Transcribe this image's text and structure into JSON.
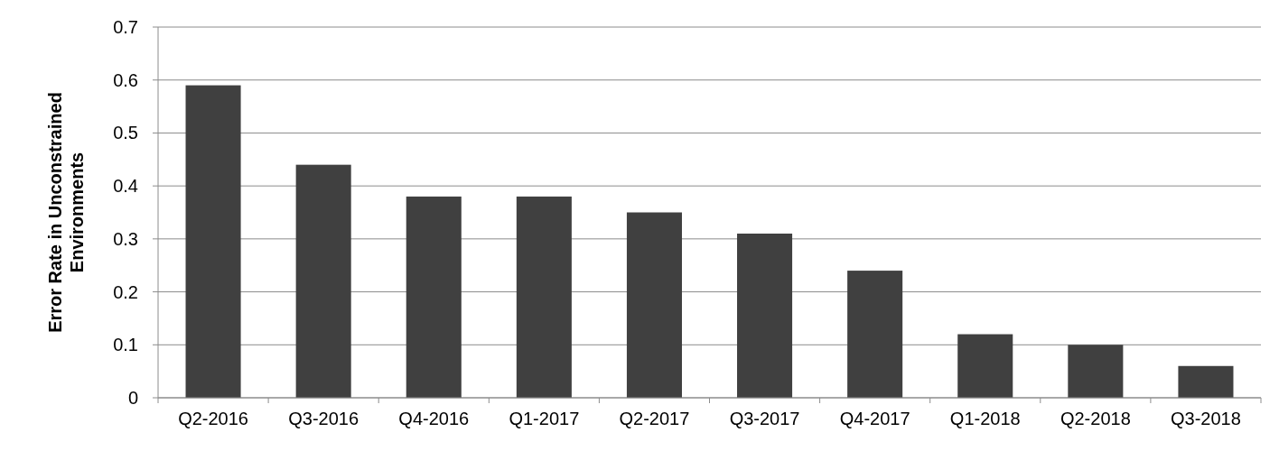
{
  "chart_data": {
    "type": "bar",
    "ylabel": "Error Rate in Unconstrained Environments",
    "categories": [
      "Q2-2016",
      "Q3-2016",
      "Q4-2016",
      "Q1-2017",
      "Q2-2017",
      "Q3-2017",
      "Q4-2017",
      "Q1-2018",
      "Q2-2018",
      "Q3-2018"
    ],
    "values": [
      0.59,
      0.44,
      0.38,
      0.38,
      0.35,
      0.31,
      0.24,
      0.12,
      0.1,
      0.06
    ],
    "color": "#404040",
    "ylim": [
      0,
      0.7
    ],
    "yticks": [
      0,
      0.1,
      0.2,
      0.3,
      0.4,
      0.5,
      0.6,
      0.7
    ],
    "grid": "y"
  }
}
